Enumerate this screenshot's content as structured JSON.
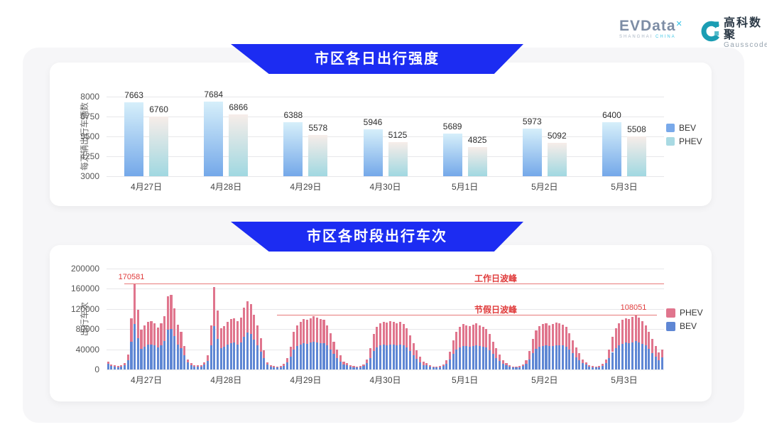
{
  "header": {
    "evdata": {
      "name": "EVData",
      "sup": "✕",
      "sub1": "SHANGHAI",
      "sub2": "CHINA"
    },
    "gausscode": {
      "cn": "高科数聚",
      "en": "Gausscode",
      "icon_color": "#1b9db3"
    }
  },
  "chart_data": [
    {
      "id": "daily",
      "type": "bar",
      "title": "市区各日出行强度",
      "ylabel": "每万辆出行车辆数",
      "ymin": 3000,
      "ymax": 8000,
      "yticks": [
        8000,
        6750,
        5500,
        4250,
        3000
      ],
      "grid": true,
      "legend_position": "right",
      "categories": [
        "4月27日",
        "4月28日",
        "4月29日",
        "4月30日",
        "5月1日",
        "5月2日",
        "5月3日"
      ],
      "series": [
        {
          "name": "BEV",
          "values": [
            7663,
            7684,
            6388,
            5946,
            5689,
            5973,
            6400
          ],
          "color_top": "#d6effa",
          "color_bottom": "#74a8e9",
          "legend_color": "#79a9ea"
        },
        {
          "name": "PHEV",
          "values": [
            6760,
            6866,
            5578,
            5125,
            4825,
            5092,
            5508
          ],
          "color_top": "#f7ede9",
          "color_bottom": "#a0d8e1",
          "legend_color": "#a9dae3"
        }
      ]
    },
    {
      "id": "hourly",
      "type": "stacked-bar",
      "title": "市区各时段出行车次",
      "ylabel": "出行车次",
      "ymin": 0,
      "ymax": 200000,
      "yticks": [
        200000,
        160000,
        120000,
        80000,
        40000,
        0
      ],
      "grid": true,
      "legend_position": "right",
      "series": [
        {
          "name": "PHEV",
          "color": "#e0758d"
        },
        {
          "name": "BEV",
          "color": "#5f87d4"
        }
      ],
      "annotations": {
        "workday_peak": {
          "label": "工作日波峰",
          "value": 170581
        },
        "holiday_peak": {
          "label": "节假日波峰",
          "value": 108051
        }
      },
      "line_color": "#e87a7a",
      "days": [
        {
          "date": "4月27日",
          "bev": [
            10900,
            6800,
            5400,
            4800,
            6100,
            8600,
            18600,
            55600,
            90400,
            61400,
            41100,
            45200,
            48900,
            49900,
            47300,
            43200,
            47800,
            55700,
            78300,
            79900,
            66600,
            49000,
            42000,
            28200
          ],
          "phev": [
            5100,
            3200,
            2600,
            2200,
            2900,
            4400,
            11400,
            45400,
            80181,
            56600,
            37900,
            41800,
            45100,
            46100,
            43700,
            39800,
            44200,
            49300,
            66700,
            68100,
            54400,
            40000,
            33000,
            18800
          ]
        },
        {
          "date": "4月28日",
          "bev": [
            13600,
            8200,
            6100,
            5400,
            6100,
            9200,
            17400,
            48400,
            86400,
            60800,
            42600,
            44700,
            49400,
            52000,
            53000,
            49900,
            53600,
            64700,
            72900,
            70200,
            59400,
            48400,
            34700,
            22800
          ],
          "phev": [
            6400,
            3800,
            2900,
            2600,
            2900,
            4800,
            10600,
            39600,
            76600,
            56200,
            39400,
            41300,
            45600,
            48000,
            49000,
            46100,
            49400,
            57300,
            62100,
            59800,
            48600,
            39600,
            27300,
            15200
          ]
        },
        {
          "date": "4月29日",
          "bev": [
            9500,
            6100,
            4800,
            4100,
            4800,
            7300,
            13600,
            24800,
            39800,
            45800,
            49400,
            52000,
            51000,
            53000,
            54600,
            53600,
            52000,
            52500,
            47500,
            38900,
            30300,
            22000,
            15700,
            9600
          ],
          "phev": [
            4500,
            2900,
            2200,
            1900,
            2200,
            3700,
            8400,
            20200,
            35200,
            42200,
            45600,
            48000,
            47000,
            49000,
            50400,
            49400,
            48000,
            46500,
            40500,
            33100,
            24700,
            18000,
            12300,
            6400
          ]
        },
        {
          "date": "4月30日",
          "bev": [
            8800,
            6100,
            4800,
            4100,
            4800,
            6600,
            12400,
            23100,
            37100,
            44200,
            47800,
            49400,
            48400,
            49900,
            48900,
            47800,
            49400,
            47700,
            44300,
            36700,
            28600,
            20900,
            14600,
            9000
          ],
          "phev": [
            4200,
            2900,
            2200,
            1900,
            2200,
            3400,
            7600,
            18900,
            32900,
            40800,
            44200,
            45600,
            44600,
            46100,
            45100,
            44200,
            45600,
            42300,
            37700,
            31300,
            23400,
            17100,
            11400,
            6000
          ]
        },
        {
          "date": "5月1日",
          "bev": [
            8200,
            5400,
            4100,
            4100,
            4800,
            6600,
            11200,
            19300,
            30700,
            39000,
            44200,
            46800,
            45800,
            44700,
            46300,
            47300,
            45800,
            45100,
            43200,
            37800,
            30300,
            23100,
            16800,
            10800
          ],
          "phev": [
            3800,
            2600,
            1900,
            1900,
            2200,
            3400,
            6800,
            15700,
            27300,
            36000,
            40800,
            43200,
            42200,
            41300,
            42700,
            43700,
            42200,
            39900,
            36800,
            32200,
            24700,
            18900,
            13200,
            7200
          ]
        },
        {
          "date": "5月2日",
          "bev": [
            8800,
            5400,
            4100,
            4100,
            4800,
            6600,
            11200,
            19800,
            31800,
            40600,
            44700,
            46800,
            47800,
            45800,
            46800,
            48400,
            47300,
            47200,
            45400,
            38900,
            31900,
            24200,
            17900,
            12000
          ],
          "phev": [
            4200,
            2600,
            1900,
            1900,
            2200,
            3400,
            6800,
            16200,
            28200,
            37400,
            41300,
            43200,
            44200,
            42200,
            43200,
            44600,
            43700,
            41800,
            38600,
            33100,
            26100,
            19800,
            14100,
            8000
          ]
        },
        {
          "date": "5月3日",
          "bev": [
            9500,
            6100,
            4800,
            4100,
            4800,
            7300,
            12400,
            22000,
            34500,
            42600,
            47800,
            51000,
            53000,
            52000,
            54100,
            56200,
            53600,
            50900,
            47500,
            40500,
            33000,
            25300,
            19000,
            24000
          ],
          "phev": [
            4500,
            2900,
            2200,
            1900,
            2200,
            3700,
            7600,
            18000,
            30500,
            39400,
            44200,
            47000,
            49000,
            48000,
            49900,
            51851,
            49400,
            45100,
            40500,
            34500,
            27000,
            20700,
            15000,
            16000
          ]
        }
      ]
    }
  ]
}
